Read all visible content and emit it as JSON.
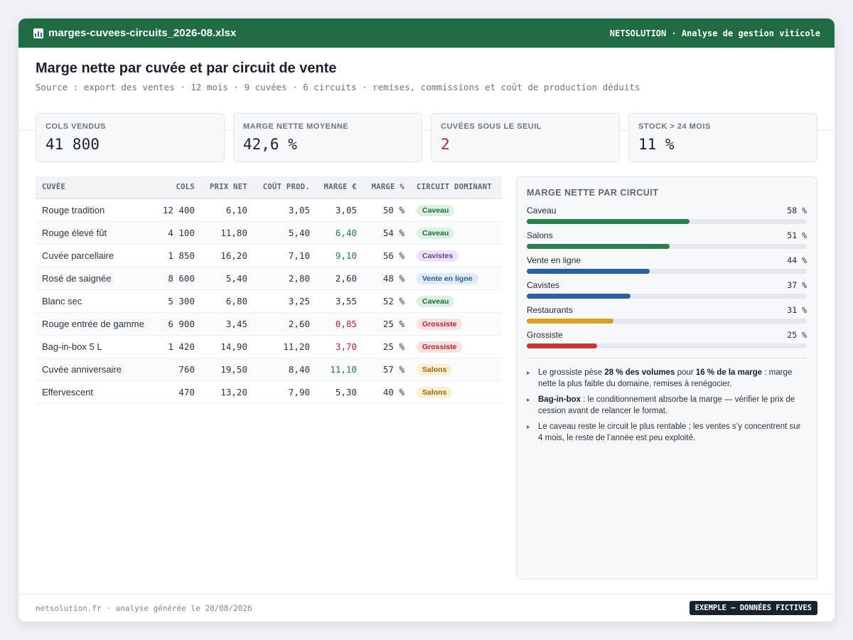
{
  "titlebar": {
    "icon": "spreadsheet-icon",
    "filename": "marges-cuvees-circuits_2026-08.xlsx",
    "brand": "NETSOLUTION · Analyse de gestion viticole"
  },
  "header": {
    "title": "Marge nette par cuvée et par circuit de vente",
    "subtitle": "Source : export des ventes · 12 mois · 9 cuvées · 6 circuits · remises, commissions et coût de production déduits"
  },
  "kpis": [
    {
      "label": "COLS VENDUS",
      "value": "41 800"
    },
    {
      "label": "MARGE NETTE MOYENNE",
      "value": "42,6 %"
    },
    {
      "label": "CUVÉES SOUS LE SEUIL",
      "value": "2",
      "color": "#b3262b"
    },
    {
      "label": "STOCK > 24 MOIS",
      "value": "11 %"
    }
  ],
  "table": {
    "headers": [
      "CUVÉE",
      "COLS",
      "PRIX NET",
      "COÛT PROD.",
      "MARGE €",
      "MARGE %",
      "CIRCUIT DOMINANT"
    ],
    "rows": [
      {
        "cuvee": "Rouge tradition",
        "cols": "12 400",
        "prix": "6,10",
        "cout": "3,05",
        "marge": "3,05",
        "pct": "50 %",
        "circuit": "Caveau"
      },
      {
        "cuvee": "Rouge élevé fût",
        "cols": "4 100",
        "prix": "11,80",
        "cout": "5,40",
        "marge": "6,40",
        "pct": "54 %",
        "circuit": "Caveau"
      },
      {
        "cuvee": "Cuvée parcellaire",
        "cols": "1 850",
        "prix": "16,20",
        "cout": "7,10",
        "marge": "9,10",
        "pct": "56 %",
        "circuit": "Cavistes"
      },
      {
        "cuvee": "Rosé de saignée",
        "cols": "8 600",
        "prix": "5,40",
        "cout": "2,80",
        "marge": "2,60",
        "pct": "48 %",
        "circuit": "Vente en ligne"
      },
      {
        "cuvee": "Blanc sec",
        "cols": "5 300",
        "prix": "6,80",
        "cout": "3,25",
        "marge": "3,55",
        "pct": "52 %",
        "circuit": "Caveau"
      },
      {
        "cuvee": "Rouge entrée de gamme",
        "cols": "6 900",
        "prix": "3,45",
        "cout": "2,60",
        "marge": "0,85",
        "pct": "25 %",
        "circuit": "Grossiste"
      },
      {
        "cuvee": "Bag-in-box 5 L",
        "cols": "1 420",
        "prix": "14,90",
        "cout": "11,20",
        "marge": "3,70",
        "pct": "25 %",
        "circuit": "Grossiste"
      },
      {
        "cuvee": "Cuvée anniversaire",
        "cols": "760",
        "prix": "19,50",
        "cout": "8,40",
        "marge": "11,10",
        "pct": "57 %",
        "circuit": "Salons"
      },
      {
        "cuvee": "Effervescent",
        "cols": "470",
        "prix": "13,20",
        "cout": "7,90",
        "marge": "5,30",
        "pct": "40 %",
        "circuit": "Salons"
      }
    ]
  },
  "panel": {
    "title": "MARGE NETTE PAR CIRCUIT",
    "bars": [
      {
        "label": "Caveau",
        "pct_label": "58 %",
        "value": 58,
        "color": "#2f7d4f"
      },
      {
        "label": "Salons",
        "pct_label": "51 %",
        "value": 51,
        "color": "#2f7d4f"
      },
      {
        "label": "Vente en ligne",
        "pct_label": "44 %",
        "value": 44,
        "color": "#2f5f9e"
      },
      {
        "label": "Cavistes",
        "pct_label": "37 %",
        "value": 37,
        "color": "#2f5f9e"
      },
      {
        "label": "Restaurants",
        "pct_label": "31 %",
        "value": 31,
        "color": "#d9a021"
      },
      {
        "label": "Grossiste",
        "pct_label": "25 %",
        "value": 25,
        "color": "#c0393b"
      }
    ],
    "notes": [
      {
        "t1": "Le grossiste pèse ",
        "b1": "28 % des volumes",
        "t2": " pour ",
        "b2": "16 % de la marge",
        "t3": " : marge nette la plus faible du domaine, remises à renégocier."
      },
      {
        "b1": "Bag-in-box",
        "t1": " : le conditionnement absorbe la marge — vérifier le prix de cession avant de relancer le format."
      },
      {
        "t1": "Le caveau reste le circuit le plus rentable ; les ventes s’y concentrent sur 4 mois, le reste de l’année est peu exploité."
      }
    ]
  },
  "footer": {
    "left": "netsolution.fr · analyse générée le 20/08/2026",
    "badge": "EXEMPLE — DONNÉES FICTIVES"
  }
}
